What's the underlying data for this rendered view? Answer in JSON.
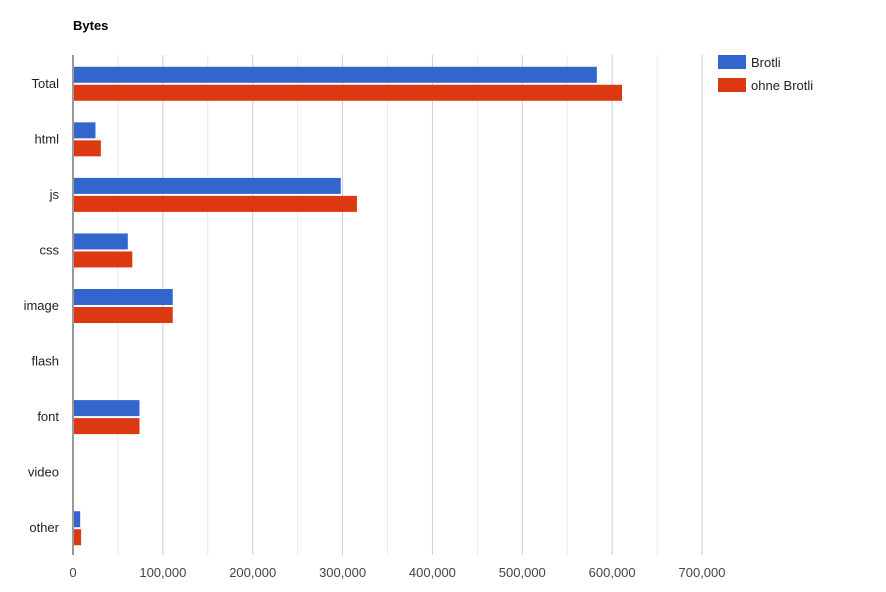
{
  "chart_data": {
    "type": "bar",
    "orientation": "horizontal",
    "title": "Bytes",
    "categories": [
      "Total",
      "html",
      "js",
      "css",
      "image",
      "flash",
      "font",
      "video",
      "other"
    ],
    "series": [
      {
        "name": "Brotli",
        "color": "#3366cc",
        "values": [
          583000,
          25000,
          298000,
          61000,
          111000,
          0,
          74000,
          0,
          8000
        ]
      },
      {
        "name": "ohne Brotli",
        "color": "#dc3912",
        "values": [
          611000,
          31000,
          316000,
          66000,
          111000,
          0,
          74000,
          0,
          9000
        ]
      }
    ],
    "x_ticks": [
      "0",
      "100,000",
      "200,000",
      "300,000",
      "400,000",
      "500,000",
      "600,000",
      "700,000"
    ],
    "xlim": [
      0,
      700000
    ],
    "grid": true,
    "legend_position": "right"
  }
}
